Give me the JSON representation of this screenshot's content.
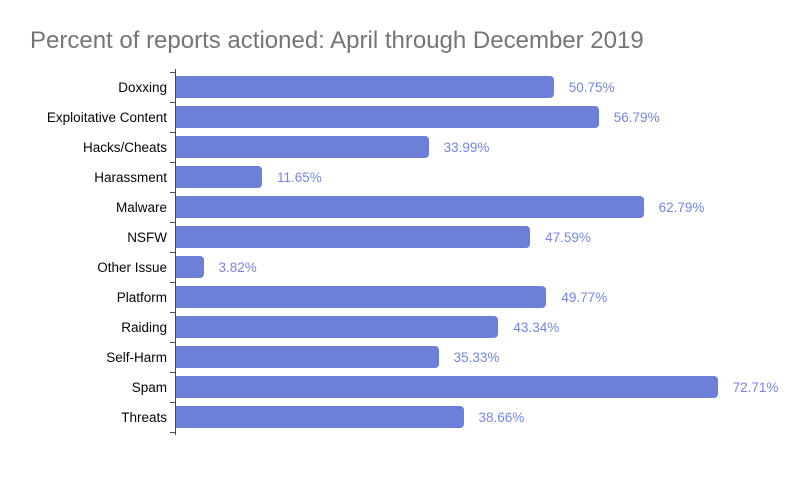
{
  "title": "Percent of reports actioned: April through December 2019",
  "colors": {
    "bar": "#6c80d9",
    "value_label": "#7586e2",
    "category_label": "#060606",
    "title": "#757575",
    "axis": "#4a4a4a",
    "background": "#ffffff"
  },
  "chart_data": {
    "type": "bar",
    "orientation": "horizontal",
    "title": "Percent of reports actioned: April through December 2019",
    "categories": [
      "Doxxing",
      "Exploitative Content",
      "Hacks/Cheats",
      "Harassment",
      "Malware",
      "NSFW",
      "Other Issue",
      "Platform",
      "Raiding",
      "Self-Harm",
      "Spam",
      "Threats"
    ],
    "values": [
      50.75,
      56.79,
      33.99,
      11.65,
      62.79,
      47.59,
      3.82,
      49.77,
      43.34,
      35.33,
      72.71,
      38.66
    ],
    "value_labels": [
      "50.75%",
      "56.79%",
      "33.99%",
      "11.65%",
      "62.79%",
      "47.59%",
      "3.82%",
      "49.77%",
      "43.34%",
      "35.33%",
      "72.71%",
      "38.66%"
    ],
    "xlabel": "",
    "ylabel": "",
    "xlim": [
      0,
      80
    ],
    "grid": false,
    "legend": "none",
    "bar_corner_radius": "rounded-right",
    "value_label_position": "outside-end"
  }
}
